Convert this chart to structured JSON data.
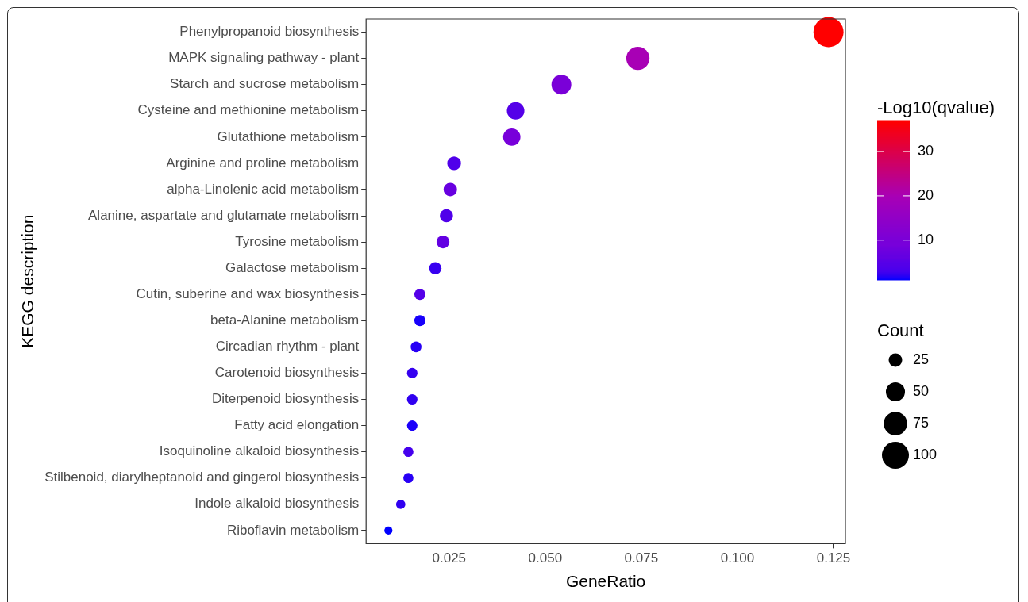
{
  "chart_data": {
    "type": "bubble",
    "xlabel": "GeneRatio",
    "ylabel": "KEGG description",
    "clabel": "-Log10(qvalue)",
    "legend_title": "Count",
    "marker": "circle",
    "orientation": "horizontal",
    "categories": [
      "Phenylpropanoid biosynthesis",
      "MAPK signaling pathway - plant",
      "Starch and sucrose metabolism",
      "Cysteine and methionine metabolism",
      "Glutathione metabolism",
      "Arginine and proline metabolism",
      "alpha-Linolenic acid metabolism",
      "Alanine, aspartate and glutamate metabolism",
      "Tyrosine metabolism",
      "Galactose metabolism",
      "Cutin, suberine and wax biosynthesis",
      "beta-Alanine metabolism",
      "Circadian rhythm - plant",
      "Carotenoid biosynthesis",
      "Diterpenoid biosynthesis",
      "Fatty acid elongation",
      "Isoquinoline alkaloid biosynthesis",
      "Stilbenoid, diarylheptanoid and gingerol biosynthesis",
      "Indole alkaloid biosynthesis",
      "Riboflavin metabolism"
    ],
    "values": [
      0.1237,
      0.0741,
      0.0542,
      0.0423,
      0.0413,
      0.0263,
      0.0253,
      0.0243,
      0.0234,
      0.0214,
      0.0174,
      0.0174,
      0.0164,
      0.0154,
      0.0154,
      0.0154,
      0.0144,
      0.0144,
      0.0124,
      0.0092
    ],
    "sizes": [
      124,
      74,
      54,
      42,
      41,
      26,
      25,
      24,
      23,
      21,
      17,
      17,
      16,
      15,
      15,
      15,
      14,
      14,
      12,
      9
    ],
    "cvalues": [
      37,
      20,
      10,
      5,
      9,
      4,
      7,
      4,
      6,
      2.5,
      4.5,
      1.5,
      2,
      2.3,
      2.2,
      1.6,
      3,
      2,
      2.2,
      1
    ],
    "colors": [
      "#ff0000",
      "#a800b5",
      "#7a00d8",
      "#5500e8",
      "#7800da",
      "#5000ea",
      "#6800e0",
      "#5000ea",
      "#6300e2",
      "#3800f0",
      "#5500e8",
      "#1800fb",
      "#2800f5",
      "#3500f0",
      "#3000f0",
      "#1c00fa",
      "#4500ed",
      "#2800f5",
      "#3000f0",
      "#0000ff"
    ],
    "size_legend": [
      25,
      50,
      75,
      100
    ],
    "xlim": [
      0.0034,
      0.1281
    ],
    "xticks": [
      0.025,
      {
        "value": 0.05,
        "label": "0.050"
      },
      {
        "value": 0.075,
        "label": "0.075"
      },
      {
        "value": 0.1,
        "label": "0.100"
      },
      0.125
    ],
    "clim": [
      1,
      37
    ],
    "cticks": [
      10,
      20,
      30
    ]
  }
}
